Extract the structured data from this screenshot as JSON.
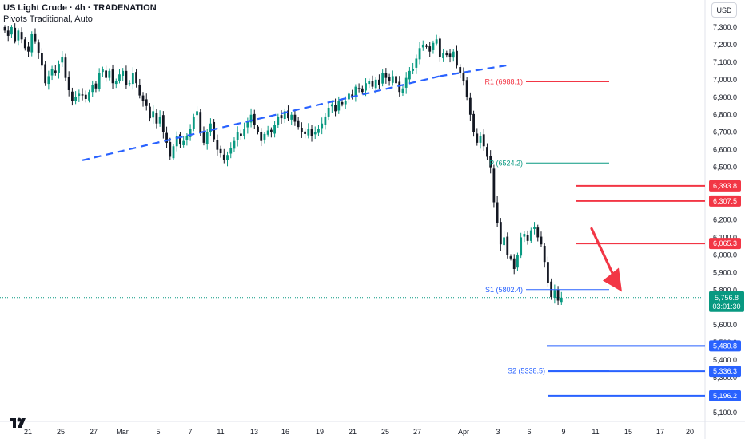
{
  "header": {
    "title": "US Light Crude · 4h · TRADENATION",
    "subtitle": "Pivots Traditional, Auto"
  },
  "currency": "USD",
  "colors": {
    "up": "#089981",
    "down": "#131722",
    "trendline": "#2962ff",
    "resistance": "#f23645",
    "support": "#2962ff",
    "pivot_p": "#089981",
    "pivot_r": "#f23645",
    "pivot_s": "#2962ff",
    "arrow": "#f23645"
  },
  "chart_data": {
    "type": "candlestick",
    "y_axis": {
      "min": 5050,
      "max": 7400,
      "ticks": [
        5100,
        5200,
        5300,
        5400,
        5500,
        5600,
        5700,
        5800,
        5900,
        6000,
        6100,
        6200,
        6300,
        6400,
        6500,
        6600,
        6700,
        6800,
        6900,
        7000,
        7100,
        7200,
        7300
      ],
      "tick_labels": [
        "5,100.0",
        "5,200.0",
        "5,300.0",
        "5,400.0",
        "5,500.0",
        "5,600.0",
        "5,700.0",
        "5,800.0",
        "5,900.0",
        "6,000.0",
        "6,100.0",
        "6,200.0",
        "6,300.0",
        "6,400.0",
        "6,500.0",
        "6,600.0",
        "6,700.0",
        "6,800.0",
        "6,900.0",
        "7,000.0",
        "7,100.0",
        "7,200.0",
        "7,300.0"
      ]
    },
    "x_axis": {
      "labels": [
        "21",
        "25",
        "27",
        "Mar",
        "5",
        "7",
        "11",
        "13",
        "16",
        "19",
        "21",
        "25",
        "27",
        "Apr",
        "3",
        "6",
        "9",
        "11",
        "15",
        "17",
        "20"
      ]
    },
    "current_price": {
      "value": 5756.8,
      "label": "5,756.8",
      "countdown": "03:01:30"
    },
    "candles_close": [
      7280,
      7250,
      7300,
      7220,
      7280,
      7230,
      7180,
      7160,
      7260,
      7220,
      7150,
      7080,
      6980,
      7020,
      7060,
      7040,
      7090,
      7130,
      7010,
      6940,
      6880,
      6900,
      6920,
      6910,
      6890,
      6930,
      6970,
      6950,
      7040,
      7060,
      7010,
      7050,
      6980,
      6990,
      7030,
      7050,
      6970,
      6980,
      7040,
      6980,
      6910,
      6880,
      6850,
      6780,
      6820,
      6750,
      6790,
      6700,
      6640,
      6560,
      6620,
      6680,
      6630,
      6650,
      6680,
      6720,
      6790,
      6820,
      6700,
      6640,
      6700,
      6750,
      6660,
      6600,
      6580,
      6540,
      6570,
      6610,
      6650,
      6700,
      6680,
      6720,
      6760,
      6800,
      6740,
      6700,
      6650,
      6690,
      6710,
      6700,
      6740,
      6790,
      6780,
      6820,
      6780,
      6800,
      6760,
      6730,
      6700,
      6690,
      6720,
      6680,
      6700,
      6720,
      6750,
      6790,
      6840,
      6860,
      6820,
      6880,
      6860,
      6880,
      6920,
      6900,
      6960,
      6950,
      6930,
      6980,
      6990,
      6960,
      7000,
      6970,
      7040,
      7010,
      6990,
      7020,
      6980,
      6930,
      6950,
      7010,
      7050,
      7060,
      7120,
      7180,
      7200,
      7190,
      7160,
      7210,
      7230,
      7130,
      7150,
      7140,
      7130,
      7160,
      7080,
      7040,
      6990,
      6900,
      6800,
      6700,
      6640,
      6680,
      6620,
      6560,
      6500,
      6300,
      6180,
      6060,
      6100,
      6000,
      5980,
      5920,
      6000,
      6100,
      6120,
      6080,
      6140,
      6160,
      6100,
      6060,
      5960,
      5840,
      5760,
      5800,
      5740,
      5756.8
    ],
    "trendlines": [
      {
        "name": "lower-trendline",
        "start": {
          "index": 23,
          "value": 6540
        },
        "end": {
          "index": 129,
          "value": 7020
        }
      },
      {
        "name": "upper-trendline",
        "start": {
          "index": 129,
          "value": 7020
        },
        "end": {
          "index": 150,
          "value": 7085
        }
      }
    ],
    "pivots": [
      {
        "name": "R1",
        "label": "R1 (6988.1)",
        "value": 6988.1,
        "color": "#f23645"
      },
      {
        "name": "P",
        "label": "P (6524.2)",
        "value": 6524.2,
        "color": "#089981"
      },
      {
        "name": "S1",
        "label": "S1 (5802.4)",
        "value": 5802.4,
        "color": "#2962ff"
      },
      {
        "name": "S2",
        "label": "S2 (5338.5)",
        "value": 5338.5,
        "color": "#2962ff"
      }
    ],
    "resistance_levels": [
      {
        "value": 6393.8,
        "label": "6,393.8"
      },
      {
        "value": 6307.5,
        "label": "6,307.5"
      },
      {
        "value": 6065.3,
        "label": "6,065.3"
      }
    ],
    "support_levels": [
      {
        "value": 5480.8,
        "label": "5,480.8"
      },
      {
        "value": 5336.3,
        "label": "5,336.3"
      },
      {
        "value": 5196.2,
        "label": "5,196.2"
      }
    ],
    "arrow": {
      "from_value": 6150,
      "to_value": 5790,
      "direction": "down"
    }
  }
}
